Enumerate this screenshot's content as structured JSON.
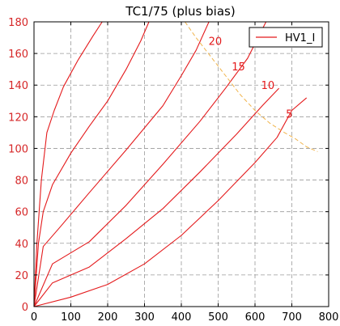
{
  "chart_data": {
    "type": "line",
    "title": "TC1/75 (plus bias)",
    "xlabel": "",
    "ylabel": "",
    "xlim": [
      0,
      800
    ],
    "ylim": [
      0,
      180
    ],
    "xticks": [
      0,
      100,
      200,
      300,
      400,
      500,
      600,
      700,
      800
    ],
    "yticks": [
      0,
      20,
      40,
      60,
      80,
      100,
      120,
      140,
      160,
      180
    ],
    "grid": true,
    "legend_position": "top-right",
    "legend": [
      "HV1_I"
    ],
    "colors": {
      "curves": "#e41a1c",
      "boundary": "#f0b44c",
      "tick_labels_y": "#d62728",
      "tick_labels_x": "#000000"
    },
    "series": [
      {
        "name": "HV1_I",
        "points": [
          [
            0,
            0
          ],
          [
            8,
            40
          ],
          [
            20,
            80
          ],
          [
            35,
            110
          ],
          [
            55,
            124
          ],
          [
            80,
            139
          ],
          [
            120,
            156
          ],
          [
            160,
            171
          ],
          [
            185,
            180
          ]
        ]
      },
      {
        "points": [
          [
            0,
            0
          ],
          [
            12,
            40
          ],
          [
            25,
            60
          ],
          [
            50,
            77
          ],
          [
            100,
            97
          ],
          [
            150,
            114
          ],
          [
            200,
            130
          ],
          [
            250,
            150
          ],
          [
            290,
            168
          ],
          [
            312,
            180
          ]
        ]
      },
      {
        "points": [
          [
            0,
            0
          ],
          [
            25,
            38
          ],
          [
            70,
            50
          ],
          [
            150,
            72
          ],
          [
            250,
            99
          ],
          [
            350,
            127
          ],
          [
            400,
            146
          ],
          [
            440,
            162
          ],
          [
            475,
            180
          ]
        ]
      },
      {
        "points": [
          [
            0,
            0
          ],
          [
            50,
            27
          ],
          [
            150,
            41
          ],
          [
            250,
            64
          ],
          [
            350,
            90
          ],
          [
            450,
            117
          ],
          [
            520,
            138
          ],
          [
            580,
            157
          ],
          [
            630,
            180
          ]
        ]
      },
      {
        "points": [
          [
            0,
            0
          ],
          [
            50,
            15
          ],
          [
            150,
            25
          ],
          [
            250,
            43
          ],
          [
            350,
            62
          ],
          [
            450,
            85
          ],
          [
            550,
            109
          ],
          [
            620,
            127
          ],
          [
            665,
            138
          ]
        ]
      },
      {
        "points": [
          [
            0,
            0
          ],
          [
            100,
            6
          ],
          [
            200,
            14
          ],
          [
            300,
            27
          ],
          [
            400,
            45
          ],
          [
            500,
            67
          ],
          [
            600,
            91
          ],
          [
            660,
            107
          ],
          [
            700,
            124
          ],
          [
            740,
            132
          ]
        ]
      }
    ],
    "boundary": [
      [
        410,
        180
      ],
      [
        440,
        170
      ],
      [
        480,
        158
      ],
      [
        520,
        146
      ],
      [
        560,
        134
      ],
      [
        600,
        124
      ],
      [
        640,
        116
      ],
      [
        680,
        110
      ],
      [
        710,
        106
      ],
      [
        740,
        101
      ],
      [
        770,
        98
      ]
    ],
    "annotations": [
      {
        "text": "20",
        "x": 492,
        "y": 168
      },
      {
        "text": "15",
        "x": 555,
        "y": 152
      },
      {
        "text": "10",
        "x": 635,
        "y": 140
      },
      {
        "text": "5",
        "x": 693,
        "y": 122
      }
    ]
  }
}
